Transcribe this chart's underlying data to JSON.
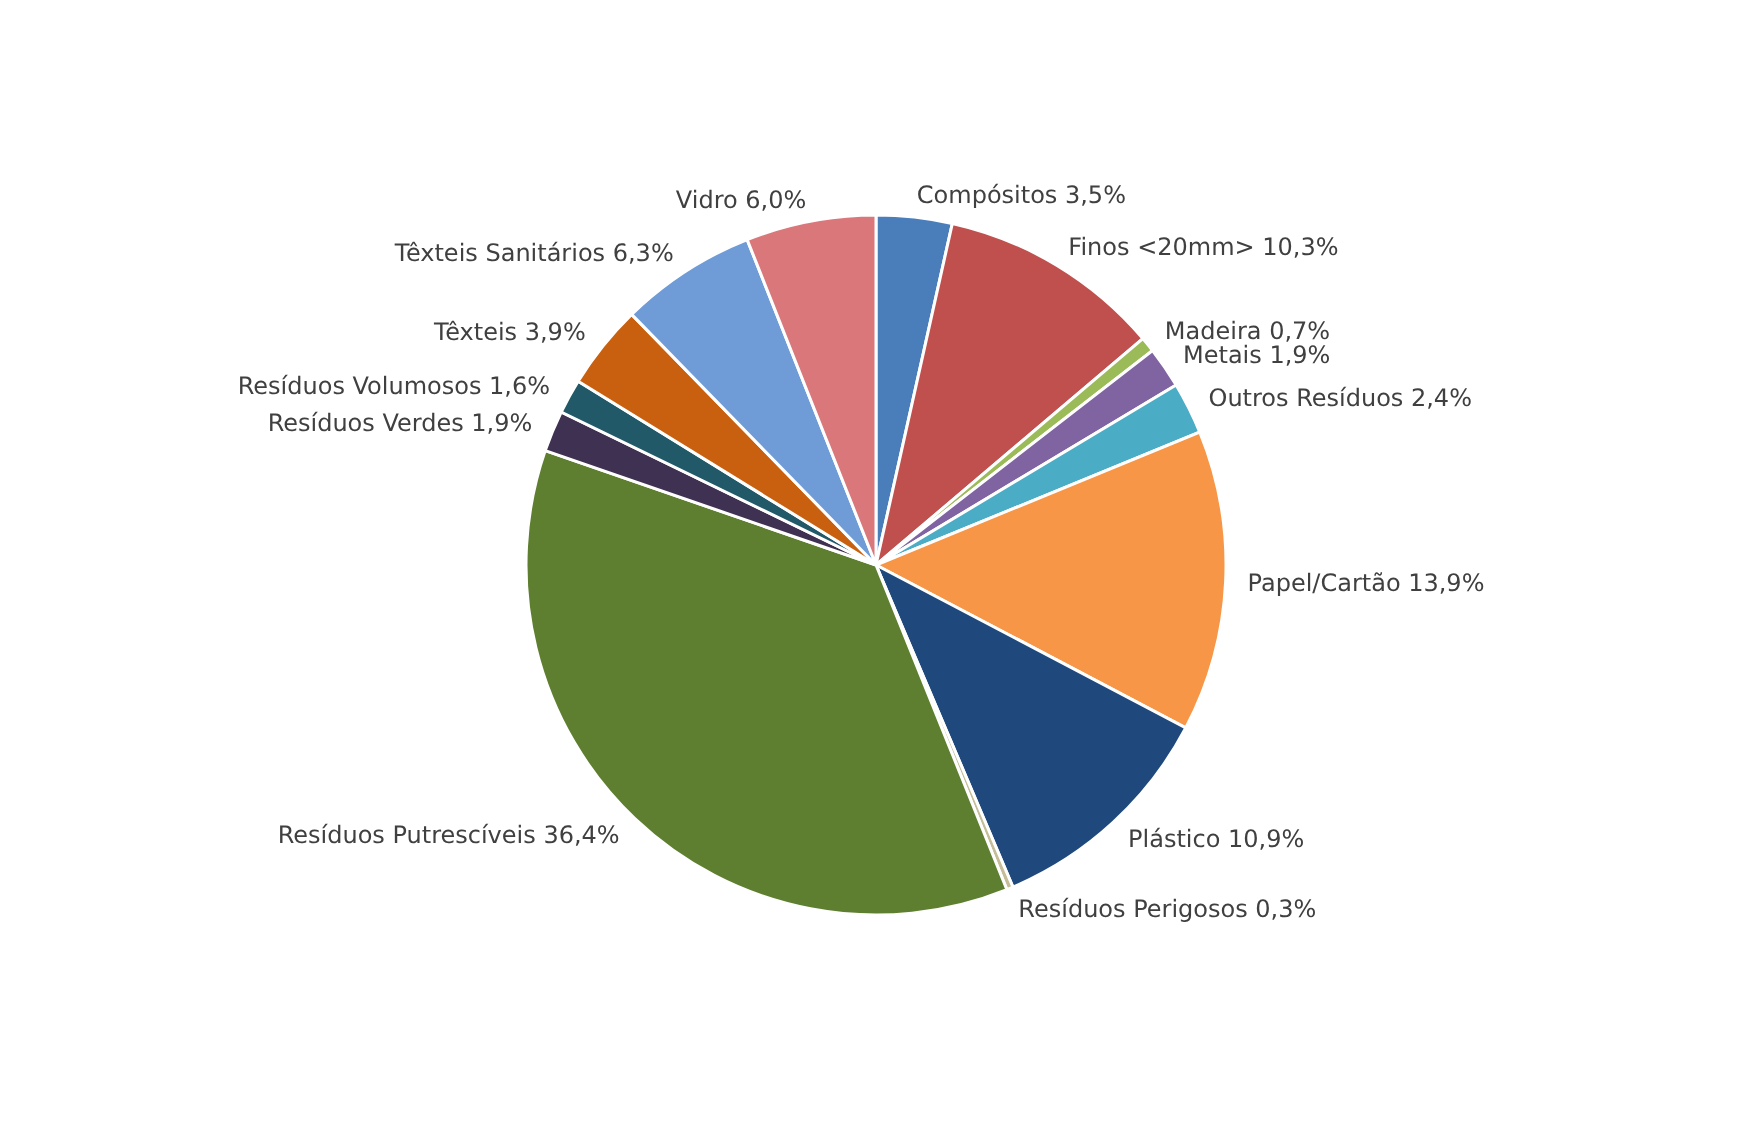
{
  "chart_data": {
    "type": "pie",
    "categories": [
      "Compósitos",
      "Finos <20mm>",
      "Madeira",
      "Metais",
      "Outros Resíduos",
      "Papel/Cartão",
      "Plástico",
      "Resíduos Perigosos",
      "Resíduos Putrescíveis",
      "Resíduos Verdes",
      "Resíduos Volumosos",
      "Têxteis",
      "Têxteis Sanitários",
      "Vidro"
    ],
    "values": [
      3.5,
      10.3,
      0.7,
      1.9,
      2.4,
      13.9,
      10.9,
      0.3,
      36.4,
      1.9,
      1.6,
      3.9,
      6.3,
      6.0
    ],
    "value_labels": [
      "3,5%",
      "10,3%",
      "0,7%",
      "1,9%",
      "2,4%",
      "13,9%",
      "10,9%",
      "0,3%",
      "36,4%",
      "1,9%",
      "1,6%",
      "3,9%",
      "6,3%",
      "6,0%"
    ],
    "colors": [
      "#4a7ebb",
      "#c0504d",
      "#9bbb59",
      "#8064a2",
      "#4bacc6",
      "#f79646",
      "#1f497d",
      "#c4bd97",
      "#5f7f30",
      "#3f3151",
      "#215968",
      "#c9600f",
      "#6f9bd6",
      "#d9777a"
    ]
  }
}
